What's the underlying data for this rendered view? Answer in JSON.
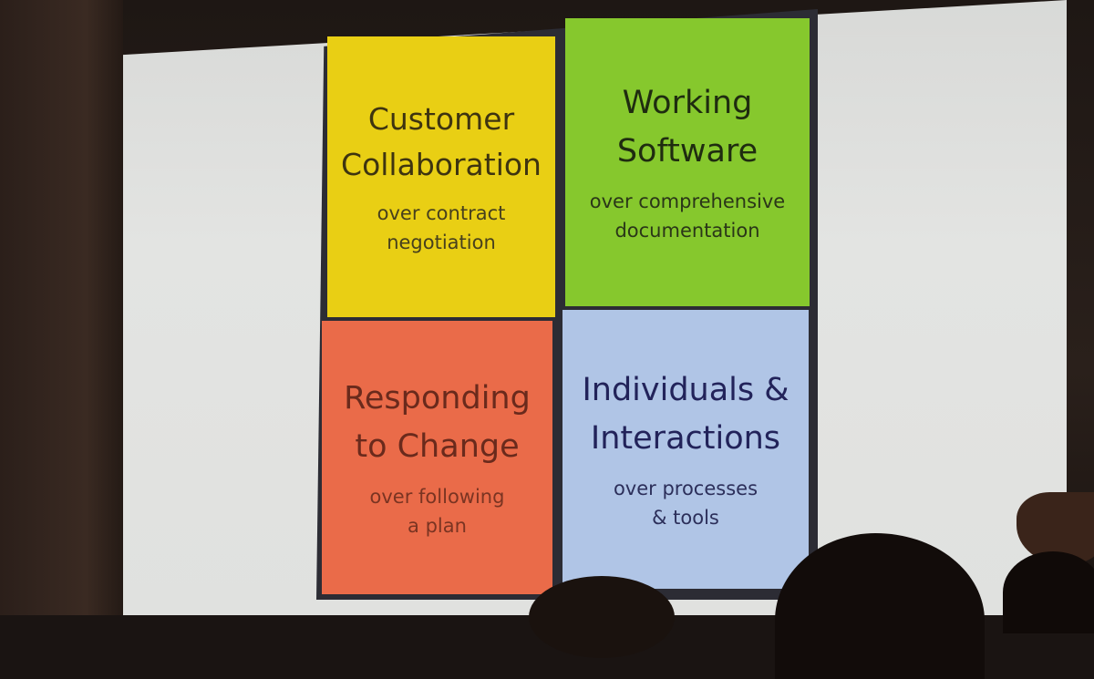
{
  "slide": {
    "quadrants": [
      {
        "title": "Customer\nCollaboration",
        "subtitle": "over contract\nnegotiation",
        "color": "#e9cf14"
      },
      {
        "title": "Working\nSoftware",
        "subtitle": "over comprehensive\ndocumentation",
        "color": "#86c82d"
      },
      {
        "title": "Responding\nto Change",
        "subtitle": "over following\na plan",
        "color": "#ea6b49"
      },
      {
        "title": "Individuals &\nInteractions",
        "subtitle": "over processes\n& tools",
        "color": "#b0c5e6"
      }
    ]
  }
}
